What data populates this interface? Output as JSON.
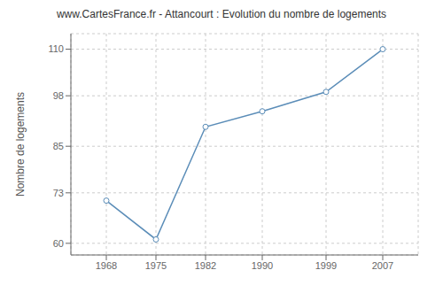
{
  "chart_data": {
    "type": "line",
    "title": "www.CartesFrance.fr - Attancourt : Evolution du nombre de logements",
    "ylabel": "Nombre de logements",
    "x": [
      1968,
      1975,
      1982,
      1990,
      1999,
      2007
    ],
    "values": [
      71,
      61,
      90,
      94,
      99,
      110
    ],
    "xlim": [
      1963,
      2012
    ],
    "xticks": [
      1968,
      1975,
      1982,
      1990,
      1999,
      2007
    ],
    "ylim": [
      57,
      114
    ],
    "yticks": [
      60,
      73,
      85,
      98,
      110
    ],
    "grid": true,
    "color": "#5b8db8",
    "marker": "circle"
  }
}
